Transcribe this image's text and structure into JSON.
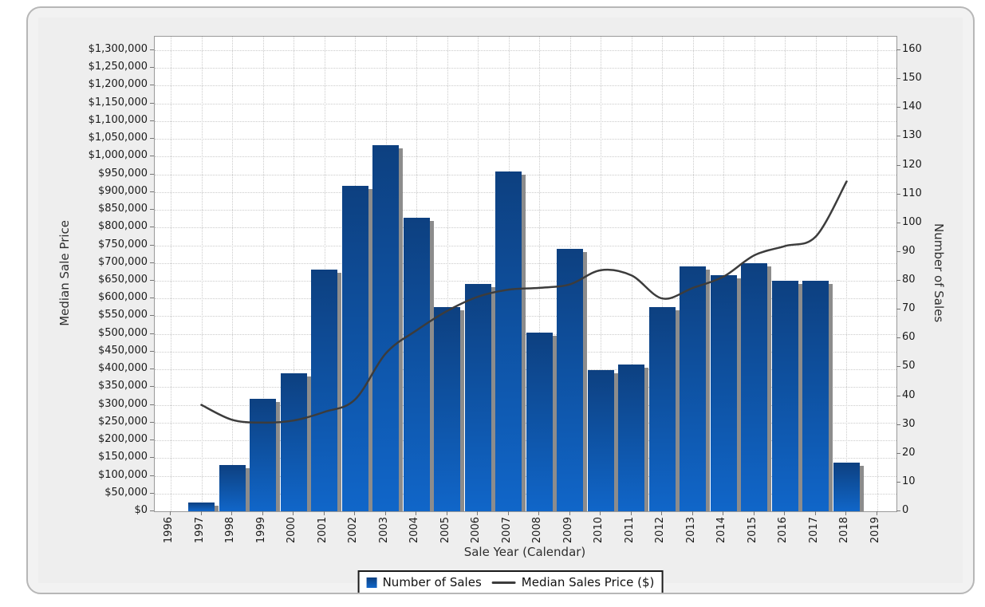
{
  "chart_data": {
    "type": "combo-bar-line",
    "title": "",
    "x_axis": {
      "title": "Sale Year (Calendar)",
      "categories": [
        "1996",
        "1997",
        "1998",
        "1999",
        "2000",
        "2001",
        "2002",
        "2003",
        "2004",
        "2005",
        "2006",
        "2007",
        "2008",
        "2009",
        "2010",
        "2011",
        "2012",
        "2013",
        "2014",
        "2015",
        "2016",
        "2017",
        "2018",
        "2019"
      ]
    },
    "left_axis": {
      "title": "Median Sale Price",
      "min": 0,
      "max": 1300000,
      "step": 50000,
      "tick_labels": [
        "$0",
        "$50,000",
        "$100,000",
        "$150,000",
        "$200,000",
        "$250,000",
        "$300,000",
        "$350,000",
        "$400,000",
        "$450,000",
        "$500,000",
        "$550,000",
        "$600,000",
        "$650,000",
        "$700,000",
        "$750,000",
        "$800,000",
        "$850,000",
        "$900,000",
        "$950,000",
        "$1,000,000",
        "$1,050,000",
        "$1,100,000",
        "$1,150,000",
        "$1,200,000",
        "$1,250,000",
        "$1,300,000"
      ]
    },
    "right_axis": {
      "title": "Number of Sales",
      "min": 0,
      "max": 160,
      "step": 10,
      "tick_labels": [
        "0",
        "10",
        "20",
        "30",
        "40",
        "50",
        "60",
        "70",
        "80",
        "90",
        "100",
        "110",
        "120",
        "130",
        "140",
        "150",
        "160"
      ]
    },
    "grid": true,
    "legend_position": "bottom",
    "series": [
      {
        "name": "Number of Sales",
        "type": "bar",
        "axis": "right",
        "years": [
          "1997",
          "1998",
          "1999",
          "2000",
          "2001",
          "2002",
          "2003",
          "2004",
          "2005",
          "2006",
          "2007",
          "2008",
          "2009",
          "2010",
          "2011",
          "2012",
          "2013",
          "2014",
          "2015",
          "2016",
          "2017",
          "2018"
        ],
        "values": [
          3,
          16,
          39,
          48,
          84,
          113,
          127,
          102,
          71,
          79,
          118,
          62,
          91,
          49,
          51,
          71,
          85,
          82,
          86,
          80,
          80,
          17
        ]
      },
      {
        "name": "Median Sales Price ($)",
        "type": "line",
        "axis": "left",
        "years": [
          "1997",
          "1998",
          "1999",
          "2000",
          "2001",
          "2002",
          "2003",
          "2004",
          "2005",
          "2006",
          "2007",
          "2008",
          "2009",
          "2010",
          "2011",
          "2012",
          "2013",
          "2014",
          "2015",
          "2016",
          "2017",
          "2018"
        ],
        "values": [
          300000,
          258000,
          250000,
          256000,
          280000,
          315000,
          445000,
          510000,
          565000,
          605000,
          625000,
          630000,
          640000,
          680000,
          665000,
          600000,
          630000,
          662000,
          722000,
          748000,
          775000,
          930000
        ]
      }
    ]
  },
  "legend": {
    "bar_label": "Number of Sales",
    "line_label": "Median Sales Price ($)"
  },
  "styles": {
    "bar_top": "#0d4080",
    "bar_bottom": "#1066c9",
    "bar_shadow": "#8c8c8c",
    "line_color": "#3c3c3c",
    "panel_bg": "#f2f2f2",
    "surface_bg": "#eeeeee",
    "plot_bg": "#ffffff",
    "grid_color": "#cbcbcb",
    "panel_border": "#b7b7b7",
    "plot_border": "#9a9a9a",
    "legend_border": "#1a1a1a"
  }
}
